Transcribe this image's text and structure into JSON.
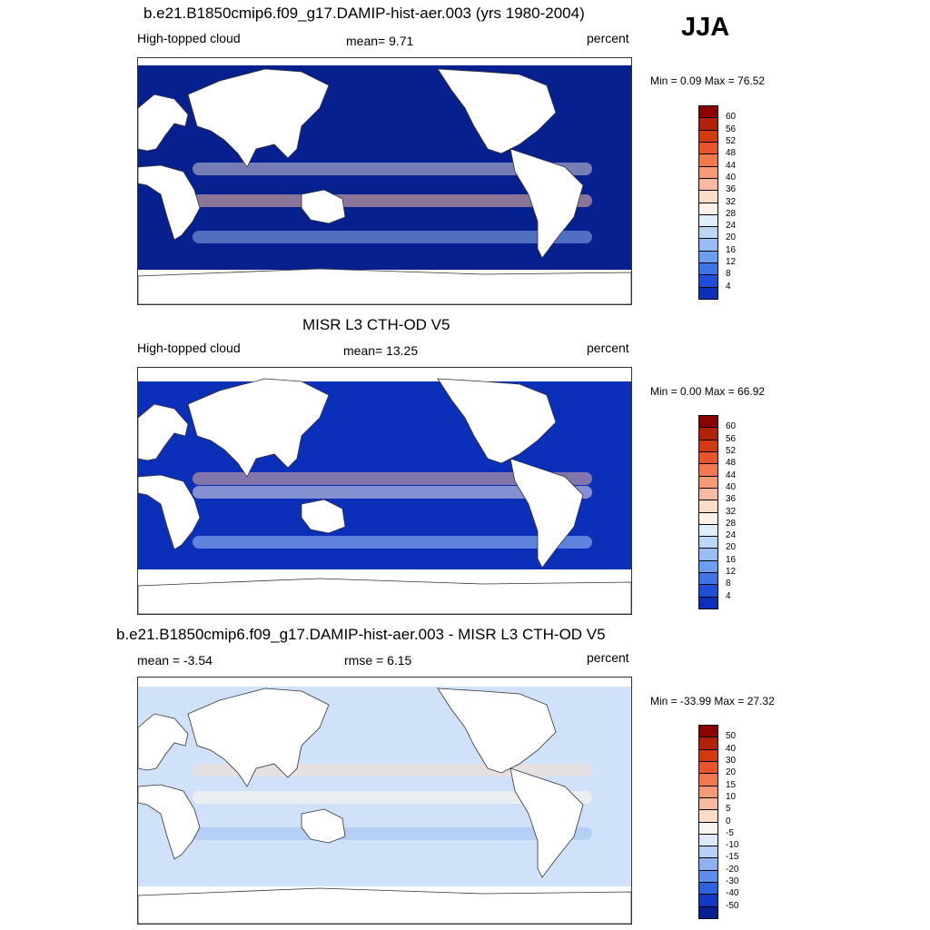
{
  "season": "JJA",
  "panels": [
    {
      "title": "b.e21.B1850cmip6.f09_g17.DAMIP-hist-aer.003 (yrs 1980-2004)",
      "left_label": "High-topped cloud",
      "center_label": "mean=   9.71",
      "unit_label": "percent",
      "minmax": "Min =   0.09 Max =  76.52",
      "colorbar": {
        "ticks": [
          "60",
          "56",
          "52",
          "48",
          "44",
          "40",
          "36",
          "32",
          "28",
          "24",
          "20",
          "16",
          "12",
          "8",
          "4"
        ],
        "colors": [
          "#8b0000",
          "#b2220b",
          "#d43a10",
          "#e8552a",
          "#f2784e",
          "#f69a76",
          "#f8bba0",
          "#fddcc8",
          "#fef2e6",
          "#dfeefc",
          "#bcd6f8",
          "#98bdf4",
          "#6d9ff0",
          "#3f75e8",
          "#1f4fd8",
          "#0b2fb8"
        ]
      },
      "map": {
        "water": "#06208f",
        "style": "model"
      }
    },
    {
      "title": "MISR L3 CTH-OD V5",
      "left_label": "High-topped cloud",
      "center_label": "mean=  13.25",
      "unit_label": "percent",
      "minmax": "Min =   0.00 Max =  66.92",
      "colorbar": {
        "ticks": [
          "60",
          "56",
          "52",
          "48",
          "44",
          "40",
          "36",
          "32",
          "28",
          "24",
          "20",
          "16",
          "12",
          "8",
          "4"
        ],
        "colors": [
          "#8b0000",
          "#b2220b",
          "#d43a10",
          "#e8552a",
          "#f2784e",
          "#f69a76",
          "#f8bba0",
          "#fddcc8",
          "#fef2e6",
          "#dfeefc",
          "#bcd6f8",
          "#98bdf4",
          "#6d9ff0",
          "#3f75e8",
          "#1f4fd8",
          "#0b2fb8"
        ]
      },
      "map": {
        "water": "#0b2fb8",
        "style": "obs"
      }
    },
    {
      "title": "b.e21.B1850cmip6.f09_g17.DAMIP-hist-aer.003 - MISR L3 CTH-OD V5",
      "left_label": "mean =  -3.54",
      "center_label": "rmse =   6.15",
      "unit_label": "percent",
      "minmax": "Min = -33.99 Max =  27.32",
      "colorbar": {
        "ticks": [
          "50",
          "40",
          "30",
          "20",
          "15",
          "10",
          "5",
          "0",
          "-5",
          "-10",
          "-15",
          "-20",
          "-30",
          "-40",
          "-50"
        ],
        "colors": [
          "#8b0000",
          "#b2220b",
          "#d43a10",
          "#e8552a",
          "#f2784e",
          "#f69a76",
          "#f8bba0",
          "#fddcc8",
          "#fef6ee",
          "#dbe9fb",
          "#b6d0f6",
          "#8cb2f1",
          "#5d8eea",
          "#2f62dd",
          "#1339c4",
          "#06208f"
        ]
      },
      "map": {
        "water": "#cfe2fa",
        "style": "diff"
      }
    }
  ]
}
